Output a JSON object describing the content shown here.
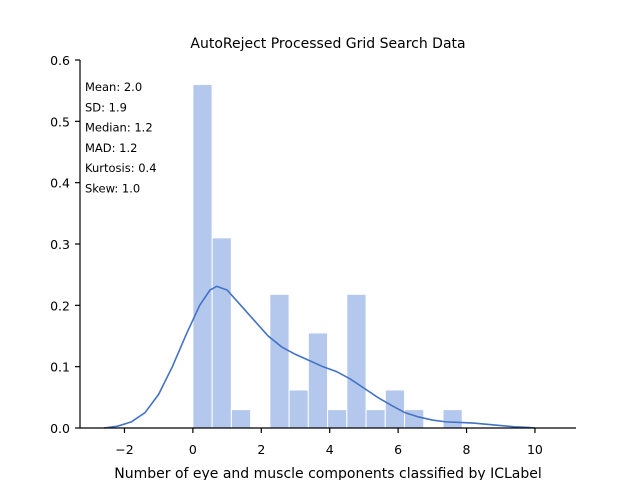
{
  "chart_data": {
    "type": "bar",
    "title": "AutoReject Processed Grid Search Data",
    "xlabel": "Number of eye and muscle components classified by ICLabel",
    "ylabel": "",
    "xlim": [
      -3.3,
      11.2
    ],
    "ylim": [
      0,
      0.6
    ],
    "xticks": [
      -2,
      0,
      2,
      4,
      6,
      8,
      10
    ],
    "yticks": [
      0.0,
      0.1,
      0.2,
      0.3,
      0.4,
      0.5,
      0.6
    ],
    "grid": false,
    "histogram": {
      "bin_edges": [
        0,
        0.5625,
        1.125,
        1.6875,
        2.25,
        2.8125,
        3.375,
        3.9375,
        4.5,
        5.0625,
        5.625,
        6.1875,
        6.75,
        7.3125,
        7.875
      ],
      "density": [
        0.56,
        0.31,
        0.03,
        0.0,
        0.218,
        0.062,
        0.155,
        0.03,
        0.218,
        0.03,
        0.062,
        0.03,
        0.0,
        0.03
      ]
    },
    "kde": {
      "x": [
        -2.6,
        -2.2,
        -1.8,
        -1.4,
        -1.0,
        -0.6,
        -0.2,
        0.2,
        0.5,
        0.7,
        1.0,
        1.4,
        1.8,
        2.2,
        2.6,
        3.0,
        3.4,
        3.8,
        4.2,
        4.6,
        5.0,
        5.4,
        5.8,
        6.2,
        6.6,
        7.0,
        7.4,
        7.8,
        8.2,
        8.6,
        9.0,
        9.4,
        9.8,
        10.0
      ],
      "y": [
        0.0,
        0.003,
        0.01,
        0.025,
        0.055,
        0.1,
        0.152,
        0.2,
        0.225,
        0.231,
        0.225,
        0.2,
        0.175,
        0.15,
        0.132,
        0.12,
        0.11,
        0.1,
        0.092,
        0.08,
        0.065,
        0.05,
        0.037,
        0.025,
        0.018,
        0.013,
        0.01,
        0.009,
        0.008,
        0.006,
        0.004,
        0.002,
        0.001,
        0.0
      ]
    },
    "colors": {
      "bar": "#b4c8ed",
      "bar_edge": "#ffffff",
      "line": "#4472c4",
      "axis": "#000000"
    },
    "annotations": [
      "Mean: 2.0",
      "SD: 1.9",
      "Median: 1.2",
      "MAD: 1.2",
      "Kurtosis: 0.4",
      "Skew: 1.0"
    ]
  }
}
